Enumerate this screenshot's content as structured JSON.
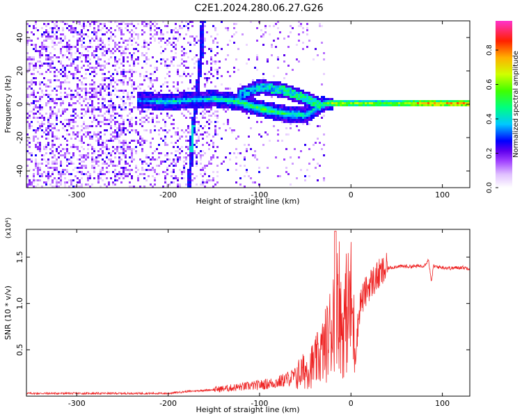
{
  "title": "C2E1.2024.280.06.27.G26",
  "chart_data": [
    {
      "type": "heatmap",
      "xlabel": "Height of straight line (km)",
      "ylabel": "Frequency (Hz)",
      "xlim": [
        -355,
        130
      ],
      "ylim": [
        -50,
        50
      ],
      "xticks": [
        -300,
        -200,
        -100,
        0,
        100
      ],
      "yticks": [
        -40,
        -20,
        0,
        20,
        40
      ],
      "colorbar": {
        "label": "Normalized spectral amplitude",
        "range": [
          0.0,
          0.97
        ],
        "ticks": [
          0.0,
          0.2,
          0.4,
          0.6,
          0.8
        ],
        "colors": [
          "#ffffff",
          "#cc66ff",
          "#6600ee",
          "#0000ff",
          "#00e0ff",
          "#00ff66",
          "#ccff00",
          "#ffaa00",
          "#ff0000",
          "#ff33cc"
        ]
      },
      "ridge": [
        {
          "x": -235,
          "f": 3,
          "amp": 0.35
        },
        {
          "x": -200,
          "f": 2,
          "amp": 0.45
        },
        {
          "x": -175,
          "f": 3,
          "amp": 0.4
        },
        {
          "x": -150,
          "f": 4,
          "amp": 0.45
        },
        {
          "x": -125,
          "f": 2,
          "amp": 0.5
        },
        {
          "x": -100,
          "f": -2,
          "amp": 0.55
        },
        {
          "x": -75,
          "f": -5,
          "amp": 0.5
        },
        {
          "x": -50,
          "f": -6,
          "amp": 0.45
        },
        {
          "x": -40,
          "f": -2,
          "amp": 0.45
        },
        {
          "x": -30,
          "f": 1,
          "amp": 0.5
        },
        {
          "x": -20,
          "f": 1,
          "amp": 0.7
        },
        {
          "x": 0,
          "f": 1,
          "amp": 0.62
        },
        {
          "x": 50,
          "f": 1,
          "amp": 0.63
        },
        {
          "x": 80,
          "f": 1,
          "amp": 0.82
        },
        {
          "x": 100,
          "f": 1,
          "amp": 0.75
        },
        {
          "x": 130,
          "f": 1,
          "amp": 0.82
        }
      ],
      "secondary_ridge": [
        {
          "x": -125,
          "f": 6,
          "amp": 0.35
        },
        {
          "x": -100,
          "f": 11,
          "amp": 0.4
        },
        {
          "x": -75,
          "f": 9,
          "amp": 0.45
        },
        {
          "x": -50,
          "f": 4,
          "amp": 0.45
        },
        {
          "x": -35,
          "f": 0,
          "amp": 0.45
        }
      ],
      "vertical_streak": [
        {
          "x": -178,
          "f": -48
        },
        {
          "x": -175,
          "f": -20
        },
        {
          "x": -170,
          "f": 5
        },
        {
          "x": -165,
          "f": 30
        },
        {
          "x": -163,
          "f": 50
        }
      ]
    },
    {
      "type": "line",
      "xlabel": "Height of straight line (km)",
      "ylabel": "SNR (10 * v/v)",
      "yscale_label": "(x10⁴)",
      "xlim": [
        -355,
        130
      ],
      "ylim": [
        0,
        1.8
      ],
      "xticks": [
        -300,
        -200,
        -100,
        0,
        100
      ],
      "yticks": [
        0.5,
        1.0,
        1.5
      ],
      "ytick_labels": [
        "0.5",
        "1.0",
        "1.5"
      ],
      "series": [
        {
          "color": "#ee2222",
          "x": [
            -355,
            -300,
            -250,
            -200,
            -180,
            -150,
            -120,
            -100,
            -80,
            -60,
            -50,
            -40,
            -30,
            -25,
            -20,
            -18,
            -15,
            -10,
            -5,
            0,
            5,
            10,
            15,
            20,
            30,
            40,
            50,
            60,
            70,
            80,
            85,
            88,
            90,
            100,
            110,
            120,
            130
          ],
          "y": [
            0.03,
            0.03,
            0.03,
            0.03,
            0.05,
            0.07,
            0.1,
            0.12,
            0.15,
            0.22,
            0.28,
            0.35,
            0.5,
            0.62,
            0.8,
            1.1,
            1.3,
            0.7,
            0.9,
            1.0,
            0.5,
            1.0,
            1.1,
            1.2,
            1.3,
            1.38,
            1.4,
            1.4,
            1.4,
            1.41,
            1.47,
            1.22,
            1.4,
            1.39,
            1.38,
            1.39,
            1.38
          ]
        }
      ]
    }
  ]
}
